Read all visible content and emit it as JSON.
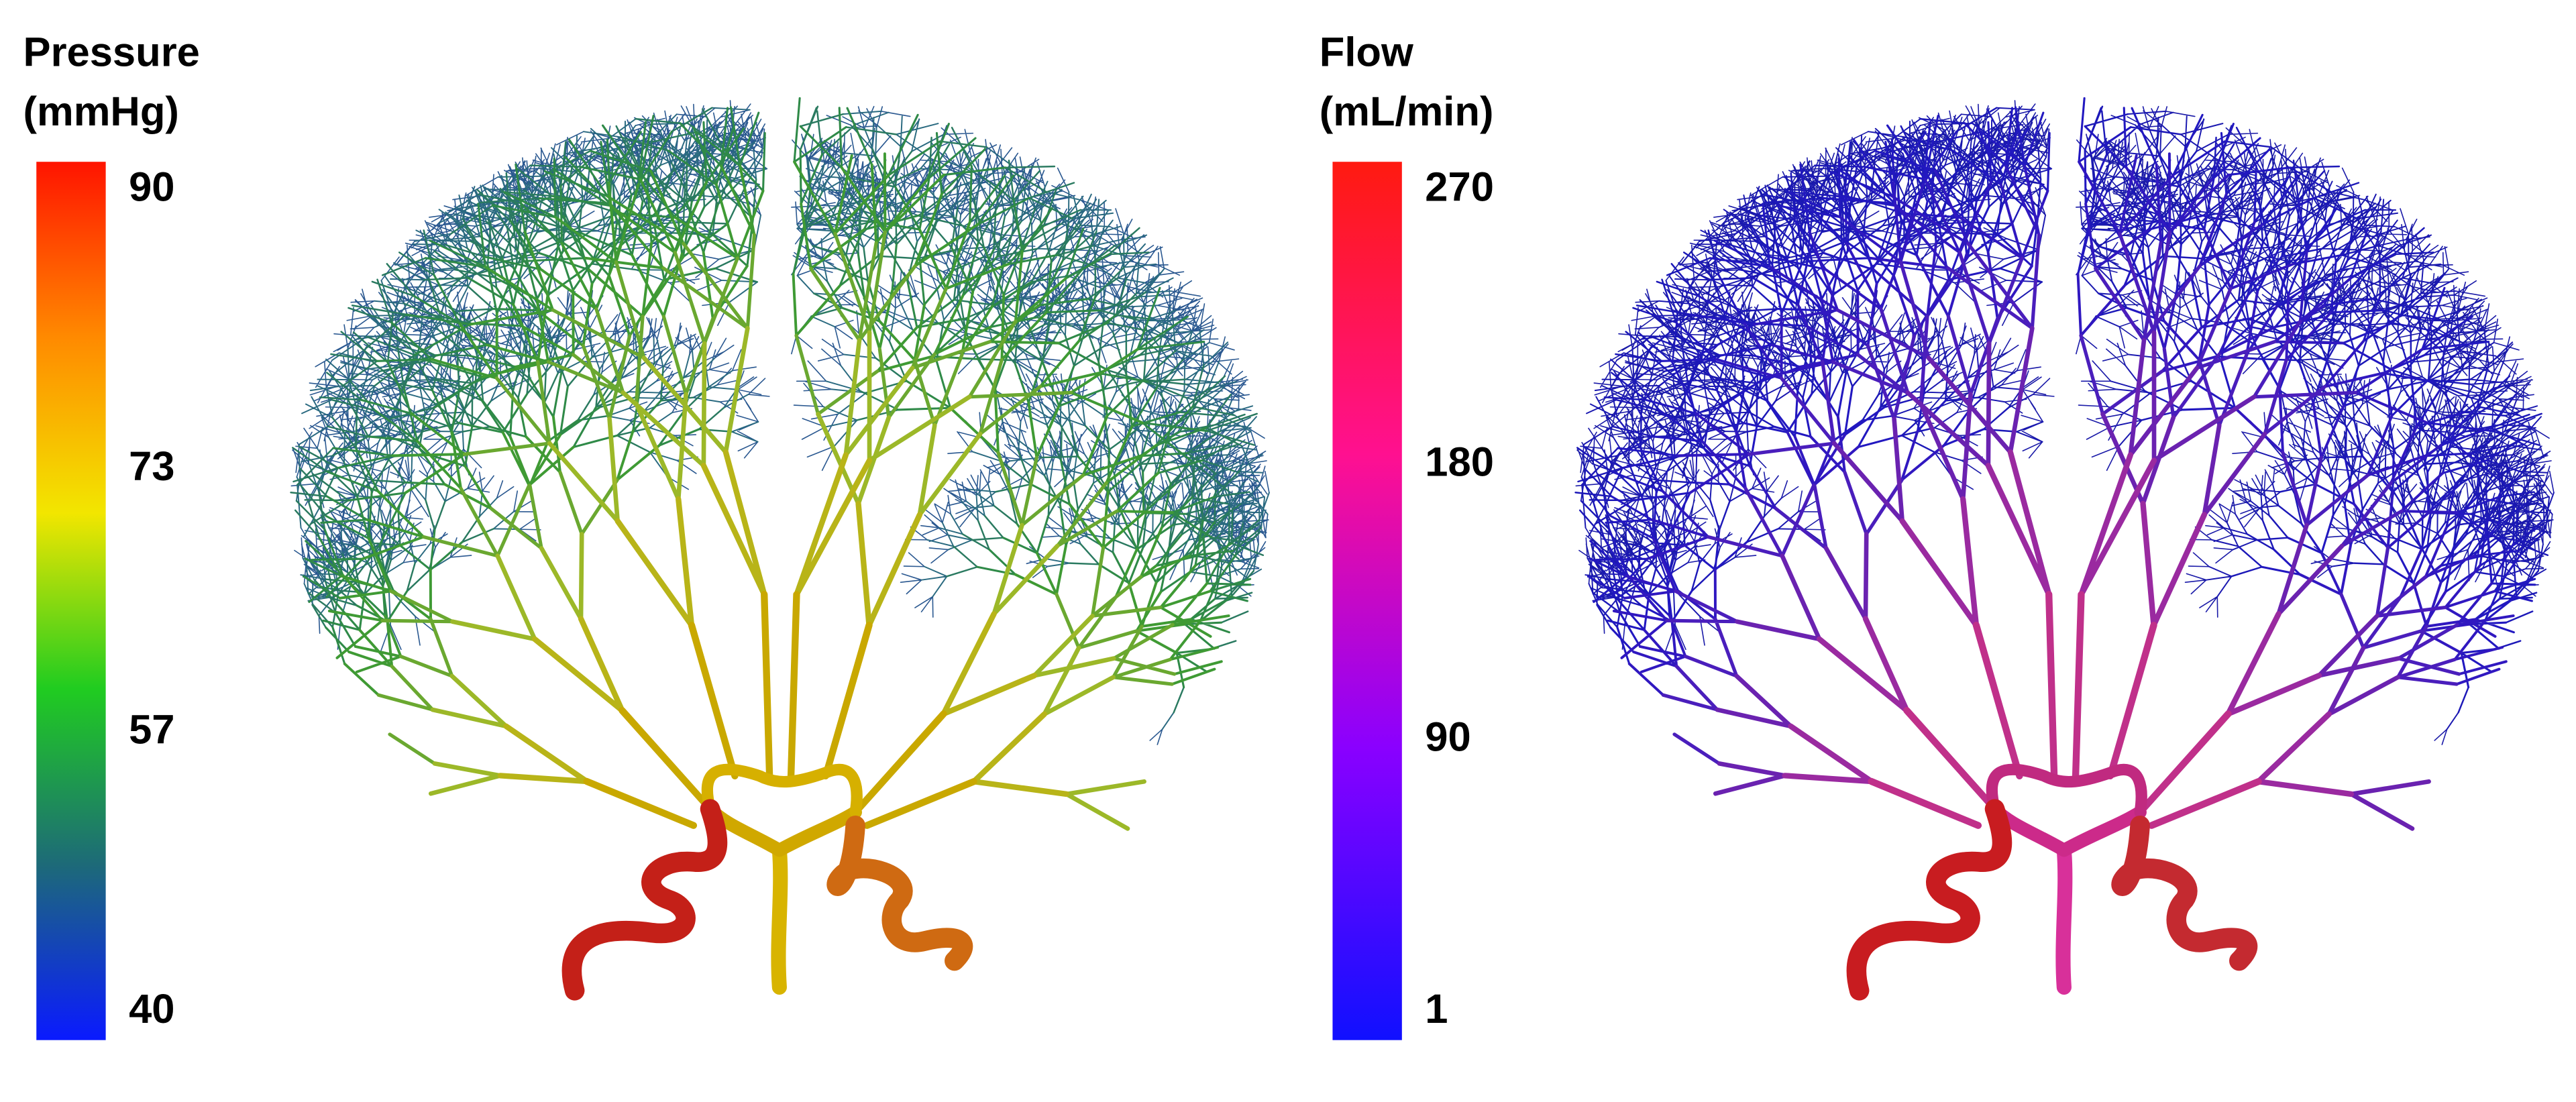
{
  "panels": [
    {
      "colorbar": {
        "title": [
          "Pressure",
          "(mmHg)"
        ],
        "range": [
          40,
          90
        ],
        "ticks": [
          90,
          73,
          57,
          40
        ],
        "colors": [
          "#0a1aff",
          "#1d6a78",
          "#20cc20",
          "#f2e600",
          "#ff8a00",
          "#ff1400"
        ]
      }
    },
    {
      "colorbar": {
        "title": [
          "Flow",
          "(mL/min)"
        ],
        "range": [
          1,
          270
        ],
        "ticks": [
          270,
          180,
          90,
          1
        ],
        "colors": [
          "#1010ff",
          "#8a00ff",
          "#ff1090",
          "#ff1a10"
        ]
      }
    }
  ]
}
